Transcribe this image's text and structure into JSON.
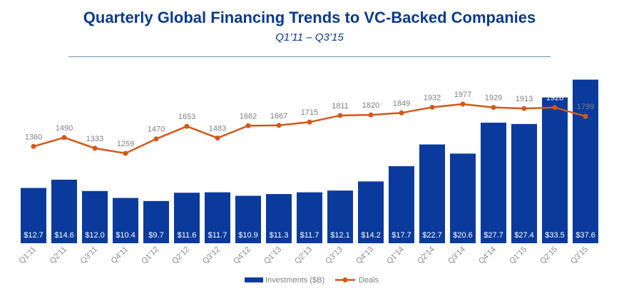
{
  "title": "Quarterly Global Financing Trends to VC-Backed Companies",
  "subtitle": "Q1’11 – Q3’15",
  "chart_data": {
    "type": "bar",
    "categories": [
      "Q1'11",
      "Q2'11",
      "Q3'11",
      "Q4'11",
      "Q1'12",
      "Q2'12",
      "Q3'12",
      "Q4'12",
      "Q1'13",
      "Q2'13",
      "Q3'13",
      "Q4'13",
      "Q1'14",
      "Q2'14",
      "Q3'14",
      "Q4'14",
      "Q1'15",
      "Q2'15",
      "Q3'15"
    ],
    "series": [
      {
        "name": "Investments ($B)",
        "type": "bar",
        "color": "#0a3a9c",
        "values": [
          12.7,
          14.6,
          12.0,
          10.4,
          9.7,
          11.6,
          11.7,
          10.9,
          11.3,
          11.7,
          12.1,
          14.2,
          17.7,
          22.7,
          20.6,
          27.7,
          27.4,
          33.5,
          37.6
        ],
        "labels": [
          "$12.7",
          "$14.6",
          "$12.0",
          "$10.4",
          "$9.7",
          "$11.6",
          "$11.7",
          "$10.9",
          "$11.3",
          "$11.7",
          "$12.1",
          "$14.2",
          "$17.7",
          "$22.7",
          "$20.6",
          "$27.7",
          "$27.4",
          "$33.5",
          "$37.6"
        ]
      },
      {
        "name": "Deals",
        "type": "line",
        "color": "#d2581a",
        "values": [
          1360,
          1490,
          1333,
          1259,
          1470,
          1653,
          1483,
          1662,
          1667,
          1715,
          1811,
          1820,
          1849,
          1932,
          1977,
          1929,
          1913,
          1928,
          1799
        ],
        "labels": [
          "1360",
          "1490",
          "1333",
          "1259",
          "1470",
          "1653",
          "1483",
          "1662",
          "1667",
          "1715",
          "1811",
          "1820",
          "1849",
          "1932",
          "1977",
          "1929",
          "1913",
          "1928",
          "1799"
        ]
      }
    ],
    "legend_position": "bottom-right"
  }
}
